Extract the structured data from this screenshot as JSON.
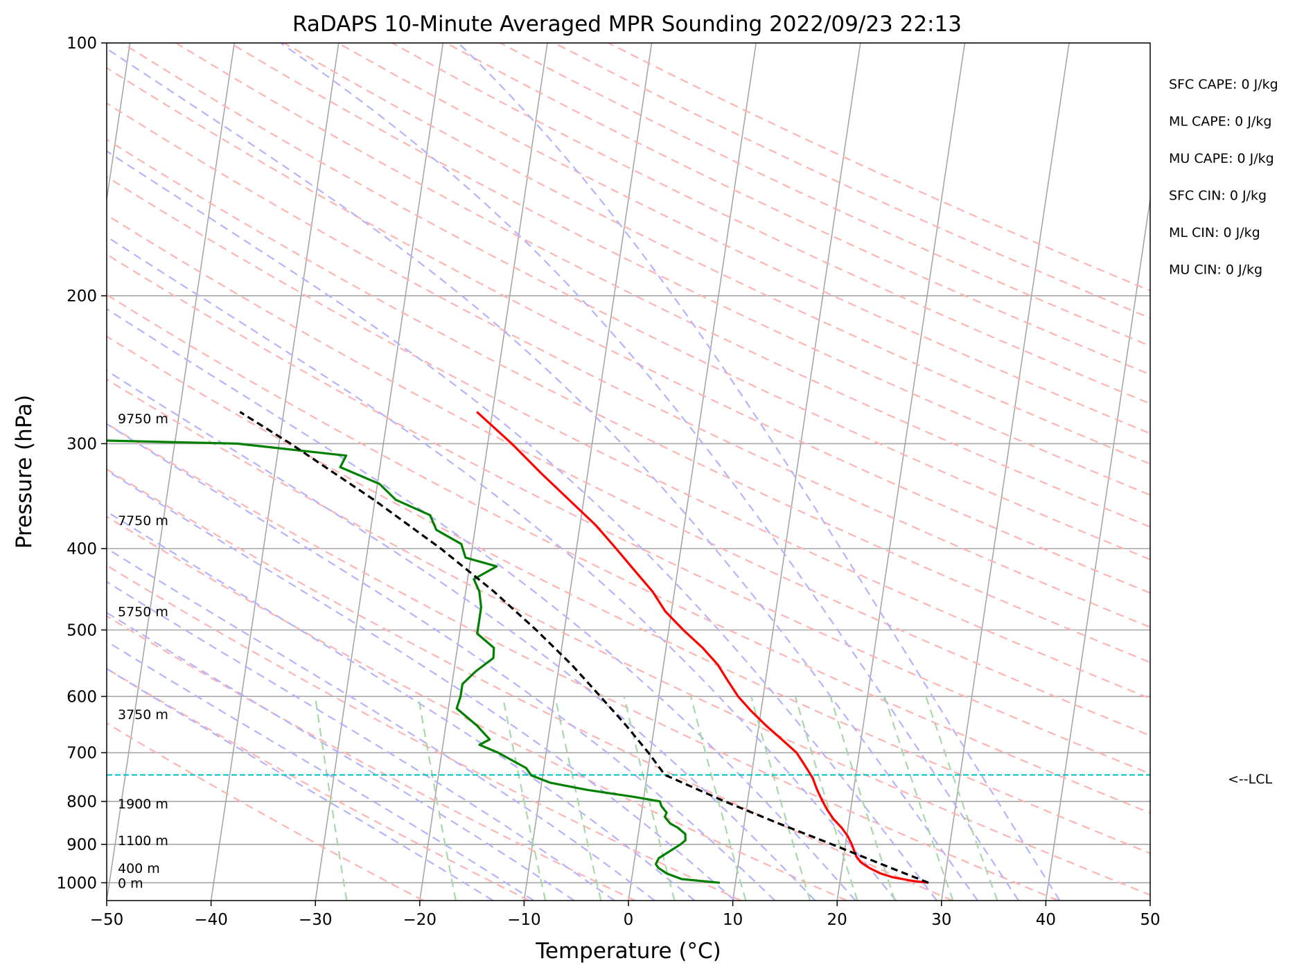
{
  "chart_data": {
    "type": "line",
    "title": "RaDAPS 10-Minute Averaged MPR Sounding 2022/09/23 22:13",
    "xlabel": "Temperature (°C)",
    "ylabel": "Pressure (hPa)",
    "xlim": [
      -50,
      50
    ],
    "ylim": [
      1050,
      100
    ],
    "y_scale": "log",
    "skew": "skew-T log-p",
    "grid": true,
    "x_ticks": [
      -50,
      -40,
      -30,
      -20,
      -10,
      0,
      10,
      20,
      30,
      40,
      50
    ],
    "x_tick_labels": [
      "−50",
      "−40",
      "−30",
      "−20",
      "−10",
      "0",
      "10",
      "20",
      "30",
      "40",
      "50"
    ],
    "y_ticks": [
      100,
      200,
      300,
      400,
      500,
      600,
      700,
      800,
      900,
      1000
    ],
    "y_tick_labels": [
      "100",
      "200",
      "300",
      "400",
      "500",
      "600",
      "700",
      "800",
      "900",
      "1000"
    ],
    "colors": {
      "temperature": "#ff0000",
      "dewpoint": "#008000",
      "parcel": "#000000",
      "dry_adiabat": "#ffb3b3",
      "moist_adiabat": "#b3b3ff",
      "mixing_ratio": "#a8d8a8",
      "isotherm": "#a6a6a6",
      "lcl": "#00bfbf"
    },
    "series": [
      {
        "role": "temperature",
        "points": [
          {
            "p": 1000,
            "t": 28.5
          },
          {
            "p": 995,
            "t": 27.0
          },
          {
            "p": 985,
            "t": 25.0
          },
          {
            "p": 975,
            "t": 23.8
          },
          {
            "p": 960,
            "t": 22.6
          },
          {
            "p": 945,
            "t": 21.7
          },
          {
            "p": 930,
            "t": 21.2
          },
          {
            "p": 900,
            "t": 20.6
          },
          {
            "p": 880,
            "t": 20.1
          },
          {
            "p": 860,
            "t": 19.4
          },
          {
            "p": 840,
            "t": 18.5
          },
          {
            "p": 820,
            "t": 17.8
          },
          {
            "p": 800,
            "t": 17.2
          },
          {
            "p": 775,
            "t": 16.5
          },
          {
            "p": 750,
            "t": 15.9
          },
          {
            "p": 720,
            "t": 14.8
          },
          {
            "p": 700,
            "t": 14.0
          },
          {
            "p": 675,
            "t": 12.4
          },
          {
            "p": 650,
            "t": 10.7
          },
          {
            "p": 625,
            "t": 9.1
          },
          {
            "p": 600,
            "t": 7.6
          },
          {
            "p": 575,
            "t": 6.4
          },
          {
            "p": 550,
            "t": 5.2
          },
          {
            "p": 525,
            "t": 3.5
          },
          {
            "p": 500,
            "t": 1.4
          },
          {
            "p": 475,
            "t": -0.6
          },
          {
            "p": 450,
            "t": -2.1
          },
          {
            "p": 425,
            "t": -4.1
          },
          {
            "p": 400,
            "t": -6.2
          },
          {
            "p": 375,
            "t": -8.5
          },
          {
            "p": 350,
            "t": -11.4
          },
          {
            "p": 325,
            "t": -14.5
          },
          {
            "p": 300,
            "t": -17.7
          },
          {
            "p": 275,
            "t": -21.5
          }
        ]
      },
      {
        "role": "dewpoint",
        "points": [
          {
            "p": 1000,
            "t": 8.5
          },
          {
            "p": 990,
            "t": 4.8
          },
          {
            "p": 975,
            "t": 3.3
          },
          {
            "p": 960,
            "t": 2.4
          },
          {
            "p": 950,
            "t": 2.1
          },
          {
            "p": 935,
            "t": 2.3
          },
          {
            "p": 920,
            "t": 3.1
          },
          {
            "p": 900,
            "t": 4.2
          },
          {
            "p": 890,
            "t": 4.6
          },
          {
            "p": 875,
            "t": 4.5
          },
          {
            "p": 860,
            "t": 3.7
          },
          {
            "p": 850,
            "t": 2.9
          },
          {
            "p": 835,
            "t": 2.3
          },
          {
            "p": 825,
            "t": 2.4
          },
          {
            "p": 810,
            "t": 1.8
          },
          {
            "p": 800,
            "t": 1.6
          },
          {
            "p": 790,
            "t": -1.0
          },
          {
            "p": 775,
            "t": -5.6
          },
          {
            "p": 760,
            "t": -9.2
          },
          {
            "p": 745,
            "t": -11.1
          },
          {
            "p": 730,
            "t": -11.7
          },
          {
            "p": 700,
            "t": -14.6
          },
          {
            "p": 685,
            "t": -16.5
          },
          {
            "p": 675,
            "t": -15.6
          },
          {
            "p": 650,
            "t": -17.0
          },
          {
            "p": 620,
            "t": -19.2
          },
          {
            "p": 600,
            "t": -19.0
          },
          {
            "p": 580,
            "t": -19.0
          },
          {
            "p": 560,
            "t": -17.9
          },
          {
            "p": 540,
            "t": -16.4
          },
          {
            "p": 525,
            "t": -16.5
          },
          {
            "p": 505,
            "t": -18.3
          },
          {
            "p": 490,
            "t": -18.3
          },
          {
            "p": 470,
            "t": -18.3
          },
          {
            "p": 450,
            "t": -18.7
          },
          {
            "p": 435,
            "t": -19.4
          },
          {
            "p": 420,
            "t": -17.4
          },
          {
            "p": 410,
            "t": -20.5
          },
          {
            "p": 395,
            "t": -21.1
          },
          {
            "p": 380,
            "t": -23.7
          },
          {
            "p": 365,
            "t": -24.5
          },
          {
            "p": 350,
            "t": -28.0
          },
          {
            "p": 335,
            "t": -29.8
          },
          {
            "p": 320,
            "t": -33.8
          },
          {
            "p": 310,
            "t": -33.4
          },
          {
            "p": 300,
            "t": -44.0
          },
          {
            "p": 296,
            "t": -64.0
          }
        ]
      },
      {
        "role": "parcel",
        "points": [
          {
            "p": 1000,
            "t": 28.5
          },
          {
            "p": 950,
            "t": 23.7
          },
          {
            "p": 900,
            "t": 18.7
          },
          {
            "p": 850,
            "t": 13.3
          },
          {
            "p": 800,
            "t": 7.8
          },
          {
            "p": 744,
            "t": 1.7
          },
          {
            "p": 700,
            "t": -0.2
          },
          {
            "p": 650,
            "t": -2.7
          },
          {
            "p": 600,
            "t": -5.6
          },
          {
            "p": 550,
            "t": -8.8
          },
          {
            "p": 500,
            "t": -12.7
          },
          {
            "p": 450,
            "t": -17.3
          },
          {
            "p": 400,
            "t": -23.0
          },
          {
            "p": 350,
            "t": -30.1
          },
          {
            "p": 300,
            "t": -38.9
          },
          {
            "p": 275,
            "t": -44.2
          }
        ]
      }
    ],
    "lcl": {
      "pressure": 744,
      "label": "<--LCL"
    },
    "height_labels": [
      {
        "text": "0 m",
        "p": 1000
      },
      {
        "text": "400 m",
        "p": 960
      },
      {
        "text": "1100 m",
        "p": 890
      },
      {
        "text": "1900 m",
        "p": 805
      },
      {
        "text": "3750 m",
        "p": 630
      },
      {
        "text": "5750 m",
        "p": 475
      },
      {
        "text": "7750 m",
        "p": 370
      },
      {
        "text": "9750 m",
        "p": 280
      }
    ],
    "indices": [
      "SFC CAPE: 0 J/kg",
      "ML CAPE: 0 J/kg",
      "MU CAPE: 0 J/kg",
      "SFC CIN: 0 J/kg",
      "ML CIN: 0 J/kg",
      "MU CIN: 0 J/kg"
    ]
  }
}
